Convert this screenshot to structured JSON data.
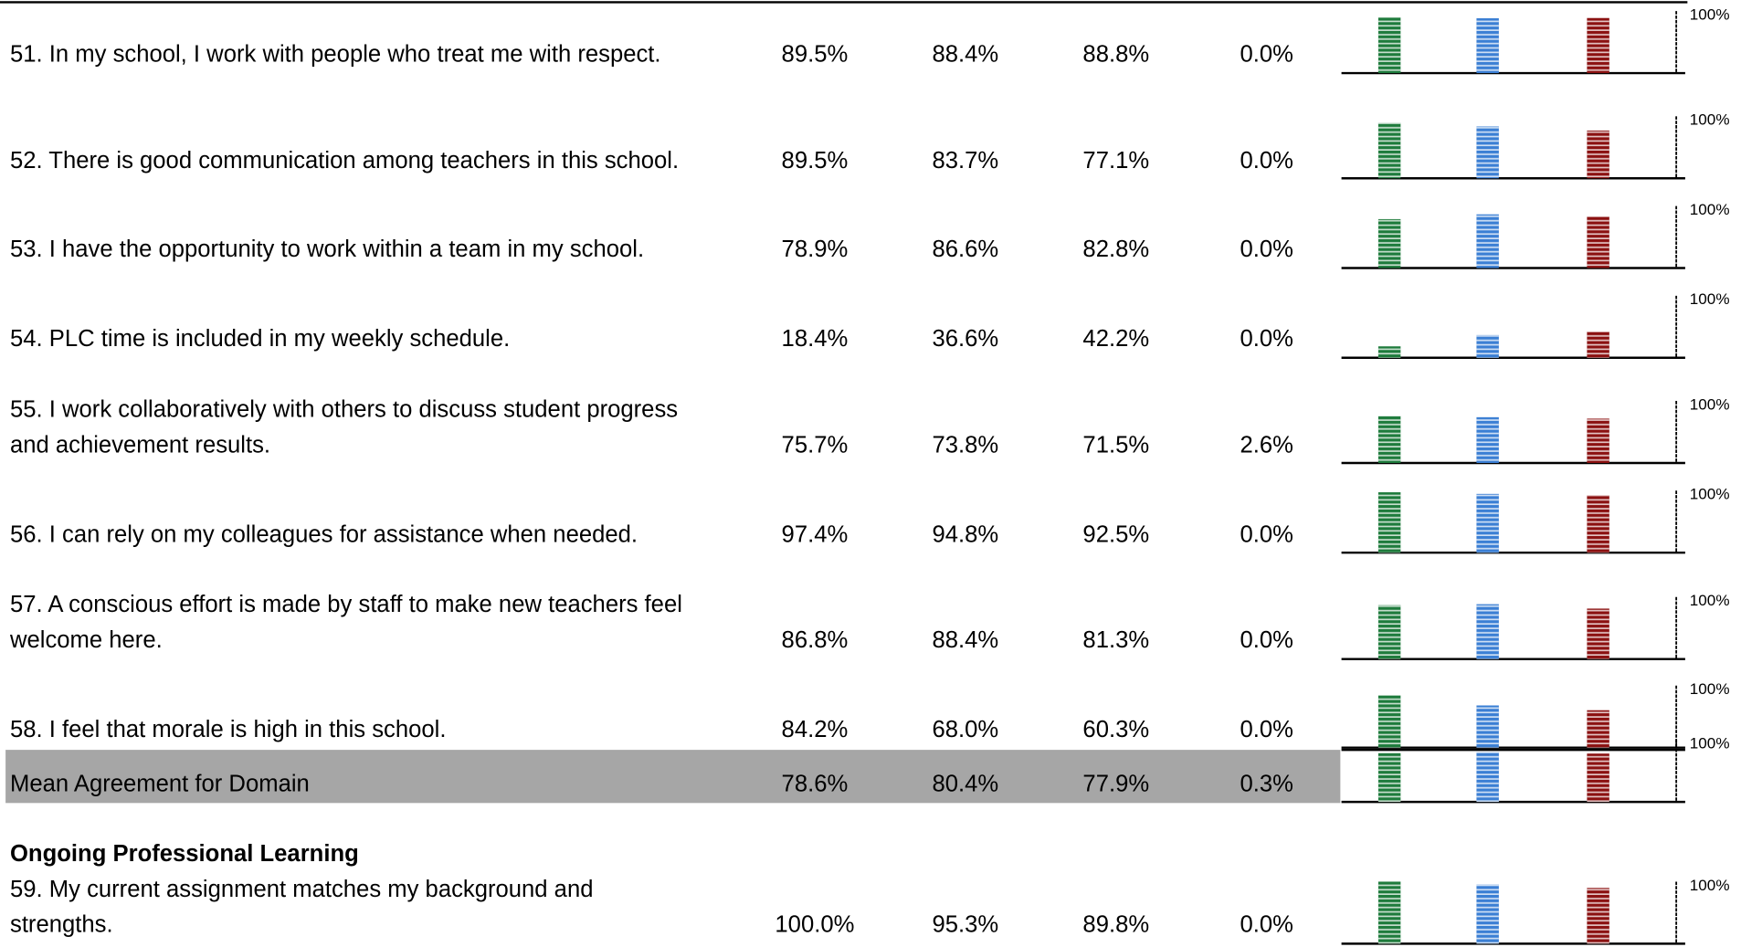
{
  "table": {
    "bar_colors": [
      "#1e7b3c",
      "#3b7fd4",
      "#8b1111"
    ],
    "scale_max": {
      "value": 100,
      "label": "100%"
    },
    "rows": [
      {
        "question": [
          "51.  In my school, I work with people who treat me with respect."
        ],
        "values": [
          89.5,
          88.4,
          88.8,
          0.0
        ],
        "value_labels": [
          "89.5%",
          "88.4%",
          "88.8%",
          "0.0%"
        ]
      },
      {
        "question": [
          "52.  There is good communication among teachers in this school."
        ],
        "values": [
          89.5,
          83.7,
          77.1,
          0.0
        ],
        "value_labels": [
          "89.5%",
          "83.7%",
          "77.1%",
          "0.0%"
        ]
      },
      {
        "question": [
          "53.  I have the opportunity to work within a team in my school."
        ],
        "values": [
          78.9,
          86.6,
          82.8,
          0.0
        ],
        "value_labels": [
          "78.9%",
          "86.6%",
          "82.8%",
          "0.0%"
        ]
      },
      {
        "question": [
          "54.  PLC time is included in my weekly schedule."
        ],
        "values": [
          18.4,
          36.6,
          42.2,
          0.0
        ],
        "value_labels": [
          "18.4%",
          "36.6%",
          "42.2%",
          "0.0%"
        ]
      },
      {
        "question": [
          "55.  I work collaboratively with others to discuss student progress",
          "and achievement results."
        ],
        "values": [
          75.7,
          73.8,
          71.5,
          2.6
        ],
        "value_labels": [
          "75.7%",
          "73.8%",
          "71.5%",
          "2.6%"
        ]
      },
      {
        "question": [
          "56.  I can rely on my colleagues for assistance when needed."
        ],
        "values": [
          97.4,
          94.8,
          92.5,
          0.0
        ],
        "value_labels": [
          "97.4%",
          "94.8%",
          "92.5%",
          "0.0%"
        ]
      },
      {
        "question": [
          "57.  A conscious effort is made by staff to make new teachers feel",
          "welcome here."
        ],
        "values": [
          86.8,
          88.4,
          81.3,
          0.0
        ],
        "value_labels": [
          "86.8%",
          "88.4%",
          "81.3%",
          "0.0%"
        ]
      },
      {
        "question": [
          "58.  I feel that morale is high in this school."
        ],
        "values": [
          84.2,
          68.0,
          60.3,
          0.0
        ],
        "value_labels": [
          "84.2%",
          "68.0%",
          "60.3%",
          "0.0%"
        ]
      },
      {
        "question": [
          "Mean Agreement for Domain"
        ],
        "values": [
          78.6,
          80.4,
          77.9,
          0.3
        ],
        "value_labels": [
          "78.6%",
          "80.4%",
          "77.9%",
          "0.3%"
        ]
      },
      {
        "heading": "Ongoing Professional Learning",
        "question": [
          "59.  My current assignment matches my background and",
          "strengths."
        ],
        "values": [
          100.0,
          95.3,
          89.8,
          0.0
        ],
        "value_labels": [
          "100.0%",
          "95.3%",
          "89.8%",
          "0.0%"
        ]
      }
    ]
  }
}
